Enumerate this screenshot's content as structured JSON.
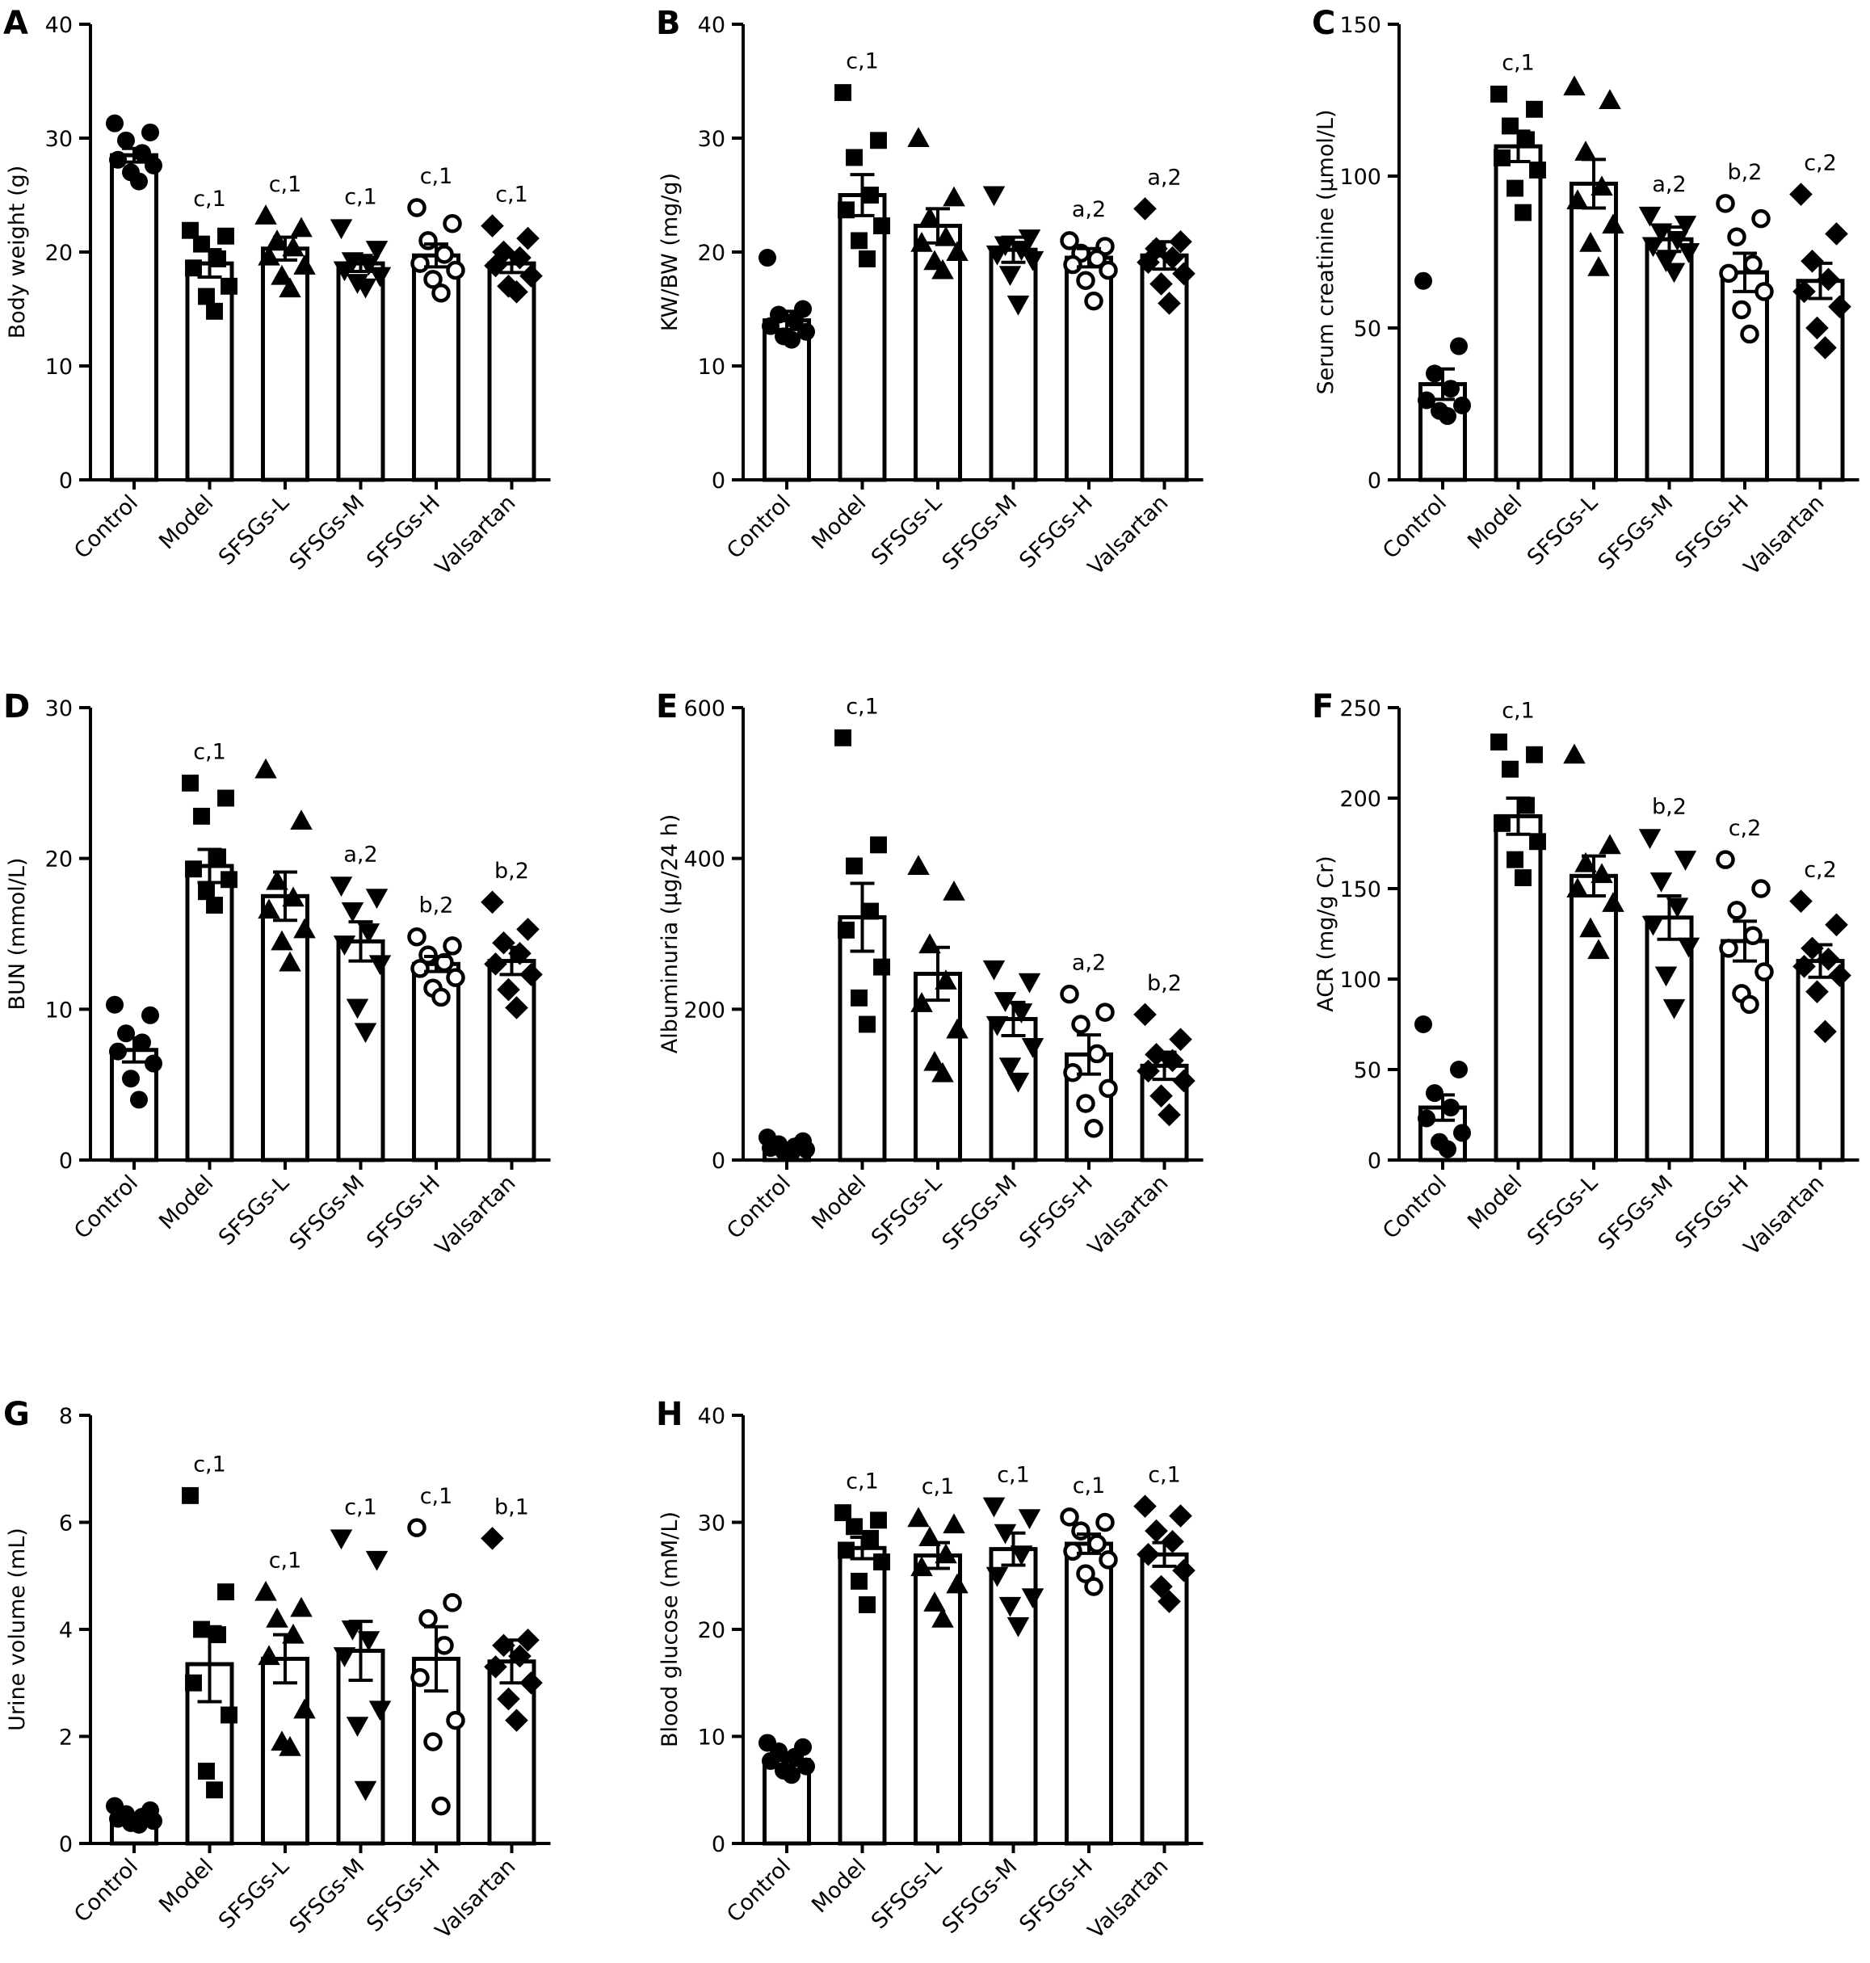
{
  "figure": {
    "categories": [
      "Control",
      "Model",
      "SFSGs-L",
      "SFSGs-M",
      "SFSGs-H",
      "Valsartan"
    ],
    "marker_shapes": [
      "circle-filled",
      "square-filled",
      "triangle-up-filled",
      "triangle-down-filled",
      "circle-open",
      "diamond-filled"
    ],
    "bar_fill": "#ffffff",
    "ink_color": "#000000"
  },
  "chart_data": [
    {
      "panel": "A",
      "type": "bar",
      "ylabel": "Body weight (g)",
      "ylim": [
        0,
        40
      ],
      "yticks": [
        0,
        10,
        20,
        30,
        40
      ],
      "categories": [
        "Control",
        "Model",
        "SFSGs-L",
        "SFSGs-M",
        "SFSGs-H",
        "Valsartan"
      ],
      "values": [
        28.5,
        19.0,
        20.3,
        19.0,
        19.7,
        19.0
      ],
      "sem": [
        0.6,
        1.2,
        1.0,
        0.7,
        1.0,
        0.8
      ],
      "significance": [
        "",
        "c,1",
        "c,1",
        "c,1",
        "c,1",
        "c,1"
      ],
      "points": [
        [
          31.3,
          30.5,
          29.8,
          28.7,
          28.1,
          27.6,
          27.0,
          26.2
        ],
        [
          21.9,
          21.4,
          20.7,
          19.4,
          18.6,
          17.0,
          16.1,
          14.8
        ],
        [
          23.2,
          22.1,
          21.0,
          20.4,
          19.6,
          18.8,
          17.9,
          16.8
        ],
        [
          22.1,
          20.2,
          19.2,
          18.9,
          18.4,
          17.9,
          17.3,
          16.9
        ],
        [
          23.9,
          22.5,
          21.0,
          19.8,
          19.0,
          18.4,
          17.6,
          16.4
        ],
        [
          22.3,
          21.2,
          20.0,
          19.5,
          18.8,
          17.9,
          17.0,
          16.5
        ]
      ]
    },
    {
      "panel": "B",
      "type": "bar",
      "ylabel": "KW/BW (mg/g)",
      "ylim": [
        0,
        40
      ],
      "yticks": [
        0,
        10,
        20,
        30,
        40
      ],
      "categories": [
        "Control",
        "Model",
        "SFSGs-L",
        "SFSGs-M",
        "SFSGs-H",
        "Valsartan"
      ],
      "values": [
        14.0,
        25.0,
        22.3,
        20.2,
        19.5,
        19.7
      ],
      "sem": [
        0.8,
        1.8,
        1.5,
        1.1,
        0.8,
        1.2
      ],
      "significance": [
        "",
        "c,1",
        "",
        "",
        "a,2",
        "a,2"
      ],
      "points": [
        [
          19.5,
          15.0,
          14.5,
          14.0,
          13.5,
          13.0,
          12.6,
          12.3
        ],
        [
          34.0,
          29.8,
          28.3,
          25.0,
          23.7,
          22.3,
          21.0,
          19.4
        ],
        [
          30.0,
          24.8,
          23.0,
          21.3,
          20.8,
          20.0,
          19.2,
          18.4
        ],
        [
          25.0,
          21.2,
          20.6,
          20.2,
          19.8,
          19.3,
          18.0,
          15.4
        ],
        [
          21.0,
          20.5,
          19.9,
          19.4,
          18.9,
          18.4,
          17.5,
          15.7
        ],
        [
          23.8,
          20.9,
          20.3,
          19.5,
          19.1,
          18.1,
          17.2,
          15.5
        ]
      ]
    },
    {
      "panel": "C",
      "type": "bar",
      "ylabel": "Serum creatinine (μmol/L)",
      "ylim": [
        0,
        150
      ],
      "yticks": [
        0,
        50,
        100,
        150
      ],
      "categories": [
        "Control",
        "Model",
        "SFSGs-L",
        "SFSGs-M",
        "SFSGs-H",
        "Valsartan"
      ],
      "values": [
        31.5,
        109.8,
        97.5,
        79.2,
        68.3,
        65.5
      ],
      "sem": [
        5.0,
        5.0,
        8.0,
        4.0,
        6.3,
        5.8
      ],
      "significance": [
        "",
        "c,1",
        "",
        "a,2",
        "b,2",
        "c,2"
      ],
      "points": [
        [
          65.5,
          44.0,
          35.0,
          30.0,
          26.2,
          24.5,
          22.7,
          21.0
        ],
        [
          127.0,
          122.0,
          116.5,
          112.0,
          106.0,
          102.0,
          96.0,
          88.0
        ],
        [
          129.5,
          125.0,
          108.0,
          96.5,
          92.0,
          84.0,
          78.0,
          70.0
        ],
        [
          87.0,
          84.0,
          81.5,
          79.0,
          77.0,
          75.0,
          72.0,
          68.5
        ],
        [
          91.0,
          86.0,
          80.0,
          71.0,
          68.0,
          62.0,
          56.0,
          48.0
        ],
        [
          94.0,
          81.0,
          72.0,
          66.0,
          62.0,
          57.0,
          50.0,
          43.5
        ]
      ]
    },
    {
      "panel": "D",
      "type": "bar",
      "ylabel": "BUN (mmol/L)",
      "ylim": [
        0,
        30
      ],
      "yticks": [
        0,
        10,
        20,
        30
      ],
      "categories": [
        "Control",
        "Model",
        "SFSGs-L",
        "SFSGs-M",
        "SFSGs-H",
        "Valsartan"
      ],
      "values": [
        7.3,
        19.5,
        17.5,
        14.5,
        13.0,
        13.2
      ],
      "sem": [
        0.8,
        1.1,
        1.6,
        1.3,
        0.5,
        0.9
      ],
      "significance": [
        "",
        "c,1",
        "",
        "a,2",
        "b,2",
        "b,2"
      ],
      "points": [
        [
          10.3,
          9.6,
          8.4,
          7.8,
          7.2,
          6.4,
          5.4,
          4.0
        ],
        [
          25.0,
          24.0,
          22.8,
          20.1,
          19.3,
          18.6,
          17.8,
          16.9
        ],
        [
          25.9,
          22.5,
          18.5,
          17.4,
          16.6,
          15.3,
          14.5,
          13.1
        ],
        [
          18.2,
          17.4,
          16.5,
          15.1,
          14.3,
          13.0,
          10.1,
          8.5
        ],
        [
          14.8,
          14.2,
          13.6,
          13.1,
          12.7,
          12.1,
          11.4,
          10.8
        ],
        [
          17.1,
          15.3,
          14.4,
          13.7,
          13.0,
          12.3,
          11.3,
          10.1
        ]
      ]
    },
    {
      "panel": "E",
      "type": "bar",
      "ylabel": "Albuminuria (μg/24 h)",
      "ylim": [
        0,
        600
      ],
      "yticks": [
        0,
        200,
        400,
        600
      ],
      "categories": [
        "Control",
        "Model",
        "SFSGs-L",
        "SFSGs-M",
        "SFSGs-H",
        "Valsartan"
      ],
      "values": [
        18.0,
        322.0,
        247.0,
        187.0,
        140.0,
        125.0
      ],
      "sem": [
        3.0,
        45.0,
        35.0,
        22.0,
        26.0,
        18.0
      ],
      "significance": [
        "",
        "c,1",
        "",
        "",
        "a,2",
        "b,2"
      ],
      "points": [
        [
          30.0,
          25.0,
          21.0,
          18.0,
          16.0,
          14.0,
          12.0,
          10.0
        ],
        [
          560.0,
          418.0,
          390.0,
          330.0,
          305.0,
          256.0,
          215.0,
          180.0
        ],
        [
          390.0,
          356.0,
          286.0,
          238.0,
          208.0,
          173.0,
          130.0,
          115.0
        ],
        [
          253.0,
          236.0,
          211.0,
          196.0,
          179.0,
          150.0,
          124.0,
          104.0
        ],
        [
          220.0,
          196.0,
          180.0,
          141.0,
          116.0,
          95.0,
          75.0,
          42.0
        ],
        [
          193.0,
          160.0,
          140.0,
          132.0,
          118.0,
          105.0,
          85.0,
          60.0
        ]
      ]
    },
    {
      "panel": "F",
      "type": "bar",
      "ylabel": "ACR (mg/g Cr)",
      "ylim": [
        0,
        250
      ],
      "yticks": [
        0,
        50,
        100,
        150,
        200,
        250
      ],
      "categories": [
        "Control",
        "Model",
        "SFSGs-L",
        "SFSGs-M",
        "SFSGs-H",
        "Valsartan"
      ],
      "values": [
        29.0,
        190.0,
        157.0,
        134.0,
        121.0,
        110.0
      ],
      "sem": [
        7.0,
        10.0,
        11.0,
        12.0,
        11.0,
        9.0
      ],
      "significance": [
        "",
        "c,1",
        "",
        "b,2",
        "c,2",
        "c,2"
      ],
      "points": [
        [
          75.0,
          50.0,
          37.0,
          29.0,
          23.0,
          15.0,
          10.0,
          6.0
        ],
        [
          231.0,
          224.0,
          216.0,
          196.0,
          186.0,
          176.0,
          166.0,
          156.0
        ],
        [
          224.0,
          174.0,
          164.0,
          158.0,
          150.0,
          142.0,
          128.0,
          116.0
        ],
        [
          178.0,
          166.0,
          154.0,
          140.0,
          130.0,
          118.0,
          102.0,
          84.0
        ],
        [
          166.0,
          150.0,
          138.0,
          124.0,
          117.0,
          104.0,
          92.0,
          86.0
        ],
        [
          143.0,
          130.0,
          117.0,
          111.0,
          107.0,
          102.0,
          93.0,
          71.0
        ]
      ]
    },
    {
      "panel": "G",
      "type": "bar",
      "ylabel": "Urine volume (mL)",
      "ylim": [
        0,
        8
      ],
      "yticks": [
        0,
        2,
        4,
        6,
        8
      ],
      "categories": [
        "Control",
        "Model",
        "SFSGs-L",
        "SFSGs-M",
        "SFSGs-H",
        "Valsartan"
      ],
      "values": [
        0.5,
        3.35,
        3.45,
        3.6,
        3.45,
        3.4
      ],
      "sem": [
        0.05,
        0.7,
        0.45,
        0.55,
        0.6,
        0.4
      ],
      "significance": [
        "",
        "c,1",
        "c,1",
        "c,1",
        "c,1",
        "b,1"
      ],
      "points": [
        [
          0.7,
          0.62,
          0.55,
          0.5,
          0.46,
          0.42,
          0.38,
          0.35
        ],
        [
          6.5,
          4.7,
          4.0,
          3.9,
          3.0,
          2.4,
          1.35,
          1.0
        ],
        [
          4.7,
          4.4,
          4.2,
          3.9,
          3.5,
          2.5,
          1.9,
          1.8
        ],
        [
          5.7,
          5.3,
          4.0,
          3.8,
          3.5,
          2.5,
          2.2,
          1.0
        ],
        [
          5.9,
          4.5,
          4.2,
          3.7,
          3.1,
          2.3,
          1.9,
          0.7
        ],
        [
          5.7,
          3.8,
          3.7,
          3.5,
          3.3,
          3.0,
          2.7,
          2.3
        ]
      ]
    },
    {
      "panel": "H",
      "type": "bar",
      "ylabel": "Blood glucose (mM/L)",
      "ylim": [
        0,
        40
      ],
      "yticks": [
        0,
        10,
        20,
        30,
        40
      ],
      "categories": [
        "Control",
        "Model",
        "SFSGs-L",
        "SFSGs-M",
        "SFSGs-H",
        "Valsartan"
      ],
      "values": [
        7.8,
        27.6,
        26.9,
        27.5,
        28.0,
        27.0
      ],
      "sem": [
        0.5,
        1.0,
        1.2,
        1.5,
        0.9,
        1.1
      ],
      "significance": [
        "",
        "c,1",
        "c,1",
        "c,1",
        "c,1",
        "c,1"
      ],
      "points": [
        [
          9.4,
          9.0,
          8.6,
          8.1,
          7.7,
          7.2,
          6.8,
          6.4
        ],
        [
          30.9,
          30.2,
          29.6,
          28.5,
          27.4,
          26.3,
          24.5,
          22.3
        ],
        [
          30.4,
          29.8,
          28.6,
          27.0,
          25.8,
          24.2,
          22.5,
          21.0
        ],
        [
          31.5,
          30.4,
          29.0,
          27.0,
          25.0,
          23.0,
          22.2,
          20.3
        ],
        [
          30.5,
          30.0,
          29.2,
          28.0,
          27.3,
          26.5,
          25.2,
          24.0
        ],
        [
          31.5,
          30.6,
          29.2,
          28.2,
          27.0,
          25.5,
          24.0,
          22.6
        ]
      ]
    }
  ]
}
